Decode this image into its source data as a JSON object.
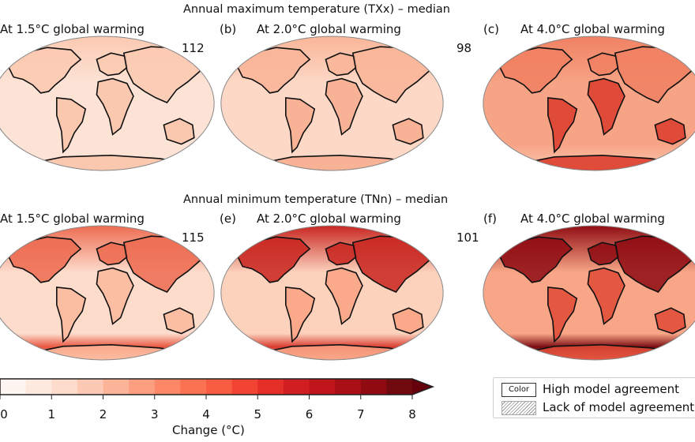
{
  "rows": [
    {
      "title": "Annual maximum temperature (TXx) – median",
      "panels": [
        {
          "letter": "",
          "label": "At 1.5°C global warming",
          "count": "112",
          "ocean": "#fde3d6",
          "land": "#f9c2a8",
          "north": "#fbc9b0",
          "south": "#fde3d6"
        },
        {
          "letter": "(b)",
          "label": "At 2.0°C global warming",
          "count": "98",
          "ocean": "#fdd8c6",
          "land": "#f7ac8c",
          "north": "#f9b497",
          "south": "#fdd8c6"
        },
        {
          "letter": "(c)",
          "label": "At 4.0°C global warming",
          "count": "",
          "ocean": "#f7a385",
          "land": "#dc3b2c",
          "north": "#f08062",
          "south": "#f9b69a"
        }
      ]
    },
    {
      "title": "Annual minimum temperature (TNn) – median",
      "panels": [
        {
          "letter": "",
          "label": "At 1.5°C global warming",
          "count": "115",
          "ocean": "#fddccc",
          "land": "#fbb89b",
          "north": "#ec6a4f",
          "south": "#e8553f"
        },
        {
          "letter": "(e)",
          "label": "At 2.0°C global warming",
          "count": "101",
          "ocean": "#fcd2bd",
          "land": "#f9a283",
          "north": "#c8241f",
          "south": "#d93a2e"
        },
        {
          "letter": "(f)",
          "label": "At 4.0°C global warming",
          "count": "",
          "ocean": "#f8a687",
          "land": "#e04a36",
          "north": "#8e0b12",
          "south": "#7a0a10"
        }
      ]
    }
  ],
  "colorbar": {
    "label": "Change (°C)",
    "ticks": [
      "0",
      "1",
      "2",
      "3",
      "4",
      "5",
      "6",
      "7",
      "8"
    ],
    "range": [
      0,
      8
    ],
    "extend": "max",
    "colors": [
      "#fff5f0",
      "#fee9df",
      "#fedccd",
      "#fcc9b4",
      "#fcb499",
      "#fc9e80",
      "#fc8868",
      "#fb7252",
      "#f85d42",
      "#f14432",
      "#e32f27",
      "#d11f21",
      "#bf151b",
      "#a91016",
      "#900a12",
      "#700a0e"
    ],
    "arrow_color": "#67000d"
  },
  "legend": {
    "color_swatch": "Color",
    "high": "High model agreement",
    "lack": "Lack of model agreement"
  }
}
